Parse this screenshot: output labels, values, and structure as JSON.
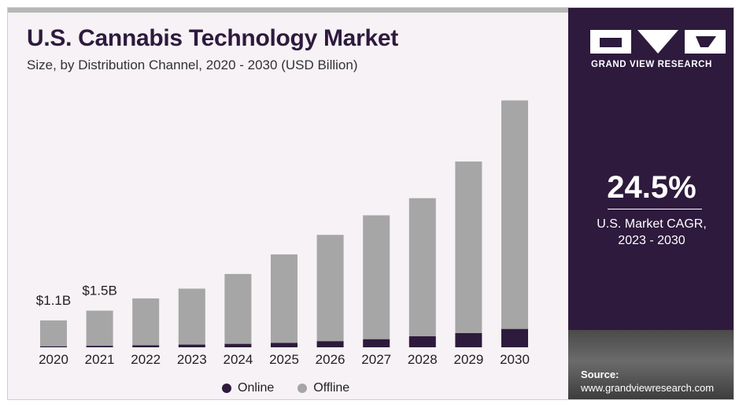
{
  "header": {
    "title": "U.S. Cannabis Technology Market",
    "subtitle": "Size, by Distribution Channel, 2020 - 2030 (USD Billion)"
  },
  "brand": {
    "name": "GRAND VIEW RESEARCH"
  },
  "highlight": {
    "cagr_value": "24.5%",
    "cagr_label_line1": "U.S. Market CAGR,",
    "cagr_label_line2": "2023 - 2030"
  },
  "source": {
    "label": "Source:",
    "url": "www.grandviewresearch.com"
  },
  "legend": {
    "online": "Online",
    "offline": "Offline"
  },
  "colors": {
    "online": "#2e1a3d",
    "offline": "#a6a6a6",
    "panel": "#2e1a3d"
  },
  "chart_data": {
    "type": "bar",
    "stacked": true,
    "categories": [
      "2020",
      "2021",
      "2022",
      "2023",
      "2024",
      "2025",
      "2026",
      "2027",
      "2028",
      "2029",
      "2030"
    ],
    "series": [
      {
        "name": "Online",
        "values": [
          0.04,
          0.06,
          0.08,
          0.11,
          0.14,
          0.18,
          0.25,
          0.33,
          0.45,
          0.58,
          0.75
        ]
      },
      {
        "name": "Offline",
        "values": [
          1.06,
          1.44,
          1.92,
          2.29,
          2.86,
          3.62,
          4.35,
          5.07,
          5.65,
          7.02,
          9.35
        ]
      }
    ],
    "data_labels": [
      {
        "category": "2020",
        "text": "$1.1B"
      },
      {
        "category": "2021",
        "text": "$1.5B"
      }
    ],
    "xlabel": "",
    "ylabel": "",
    "ylim": [
      0,
      10.6
    ],
    "grid": false,
    "legend_position": "bottom"
  }
}
